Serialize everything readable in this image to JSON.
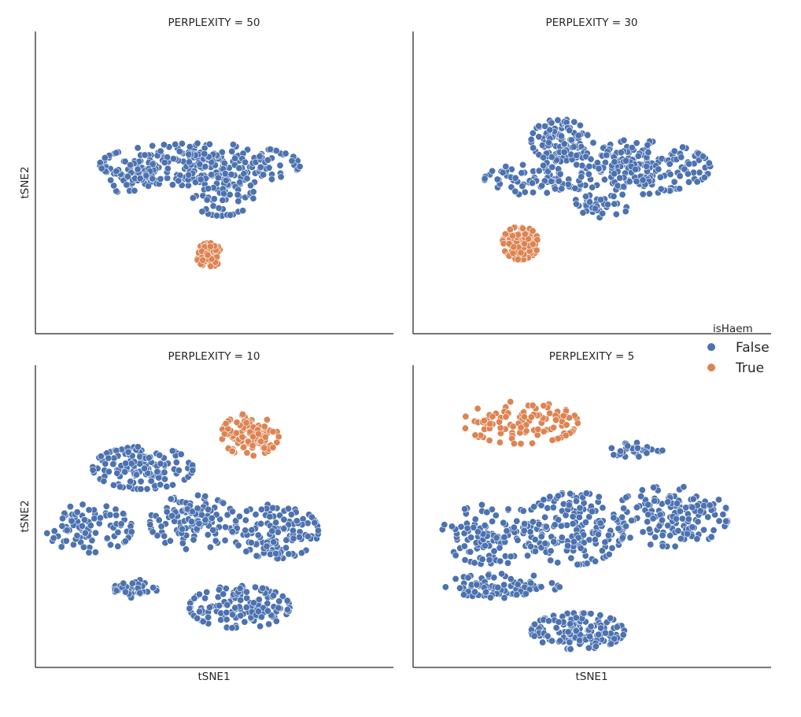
{
  "chart_data": {
    "type": "scatter",
    "legend": {
      "title": "isHaem",
      "placement": "right",
      "entries": [
        {
          "label": "False",
          "color": "#4c72b0"
        },
        {
          "label": "True",
          "color": "#dd8452"
        }
      ]
    },
    "panels": [
      {
        "title": "PERPLEXITY = 50",
        "xlabel": "",
        "ylabel": "tSNE2",
        "xlim": [
          0,
          100
        ],
        "ylim": [
          0,
          100
        ],
        "clusters": [
          {
            "series": "False",
            "cx": 46,
            "cy": 56,
            "rx": 28,
            "ry": 7,
            "n": 260
          },
          {
            "series": "False",
            "cx": 52,
            "cy": 46,
            "rx": 9,
            "ry": 7,
            "n": 60
          },
          {
            "series": "False",
            "cx": 28,
            "cy": 51,
            "rx": 7,
            "ry": 6,
            "n": 40
          },
          {
            "series": "True",
            "cx": 48.5,
            "cy": 26,
            "rx": 3.5,
            "ry": 4,
            "n": 90
          }
        ]
      },
      {
        "title": "PERPLEXITY = 30",
        "xlabel": "",
        "ylabel": "",
        "xlim": [
          0,
          100
        ],
        "ylim": [
          0,
          100
        ],
        "clusters": [
          {
            "series": "False",
            "cx": 41,
            "cy": 64,
            "rx": 8,
            "ry": 7,
            "n": 110
          },
          {
            "series": "False",
            "cx": 60,
            "cy": 55,
            "rx": 23,
            "ry": 9,
            "n": 240
          },
          {
            "series": "False",
            "cx": 32,
            "cy": 51,
            "rx": 12,
            "ry": 5,
            "n": 70
          },
          {
            "series": "False",
            "cx": 52,
            "cy": 42,
            "rx": 8,
            "ry": 4,
            "n": 40
          },
          {
            "series": "True",
            "cx": 30,
            "cy": 30,
            "rx": 5,
            "ry": 5.5,
            "n": 110
          }
        ]
      },
      {
        "title": "PERPLEXITY = 10",
        "xlabel": "tSNE1",
        "ylabel": "tSNE2",
        "xlim": [
          0,
          100
        ],
        "ylim": [
          0,
          100
        ],
        "clusters": [
          {
            "series": "False",
            "cx": 30,
            "cy": 66,
            "rx": 14,
            "ry": 7,
            "n": 150
          },
          {
            "series": "False",
            "cx": 15,
            "cy": 46,
            "rx": 12,
            "ry": 8,
            "n": 90
          },
          {
            "series": "False",
            "cx": 44,
            "cy": 48,
            "rx": 12,
            "ry": 9,
            "n": 120
          },
          {
            "series": "False",
            "cx": 67,
            "cy": 45,
            "rx": 12,
            "ry": 9,
            "n": 130
          },
          {
            "series": "False",
            "cx": 57,
            "cy": 20,
            "rx": 14,
            "ry": 7,
            "n": 150
          },
          {
            "series": "False",
            "cx": 28,
            "cy": 26,
            "rx": 6,
            "ry": 3,
            "n": 40
          },
          {
            "series": "True",
            "cx": 60,
            "cy": 77,
            "rx": 8,
            "ry": 7,
            "n": 110
          }
        ]
      },
      {
        "title": "PERPLEXITY = 5",
        "xlabel": "tSNE1",
        "ylabel": "",
        "xlim": [
          0,
          100
        ],
        "ylim": [
          0,
          100
        ],
        "clusters": [
          {
            "series": "True",
            "cx": 30,
            "cy": 81,
            "rx": 16,
            "ry": 7,
            "n": 110
          },
          {
            "series": "False",
            "cx": 62,
            "cy": 72,
            "rx": 8,
            "ry": 2.5,
            "n": 35
          },
          {
            "series": "False",
            "cx": 22,
            "cy": 44,
            "rx": 14,
            "ry": 10,
            "n": 120
          },
          {
            "series": "False",
            "cx": 45,
            "cy": 46,
            "rx": 14,
            "ry": 12,
            "n": 160
          },
          {
            "series": "False",
            "cx": 72,
            "cy": 50,
            "rx": 16,
            "ry": 10,
            "n": 150
          },
          {
            "series": "False",
            "cx": 46,
            "cy": 12,
            "rx": 13,
            "ry": 6,
            "n": 150
          },
          {
            "series": "False",
            "cx": 25,
            "cy": 27,
            "rx": 16,
            "ry": 4,
            "n": 80
          }
        ]
      }
    ],
    "grid": false
  }
}
